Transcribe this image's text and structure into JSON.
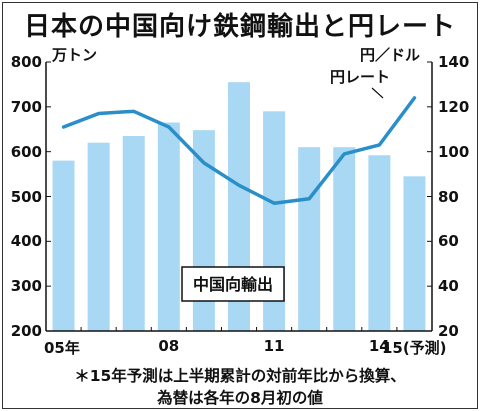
{
  "title": "日本の中国向け鉄鋼輸出と円レート",
  "unit_left": "万トン",
  "unit_right": "円／ドル",
  "footnote_line1": "＊15年予測は上半期累計の対前年比から換算、",
  "footnote_line2": "為替は各年の8月初の値",
  "colors": {
    "bar": "#a8d8f4",
    "line": "#2a8fc8",
    "axis": "#111111"
  },
  "chart_data": {
    "type": "bar+line",
    "y_left": {
      "label": "万トン",
      "ylim": [
        200,
        800
      ],
      "ticks": [
        200,
        300,
        400,
        500,
        600,
        700,
        800
      ]
    },
    "y_right": {
      "label": "円／ドル",
      "ylim": [
        20,
        140
      ],
      "ticks": [
        20,
        40,
        60,
        80,
        100,
        120,
        140
      ]
    },
    "x_tick_labels": [
      {
        "index": 0,
        "label": "05年"
      },
      {
        "index": 3,
        "label": "08"
      },
      {
        "index": 6,
        "label": "11"
      },
      {
        "index": 9,
        "label": "14"
      },
      {
        "index": 10,
        "label": "15(予測)"
      }
    ],
    "bars": {
      "name": "中国向輸出",
      "axis": "left",
      "values": [
        580,
        620,
        635,
        665,
        648,
        755,
        690,
        610,
        610,
        592,
        545
      ]
    },
    "line": {
      "name": "円レート",
      "axis": "right",
      "values": [
        111,
        117,
        118,
        111,
        95,
        85,
        77,
        79,
        99,
        103,
        124
      ]
    },
    "grid": false
  }
}
